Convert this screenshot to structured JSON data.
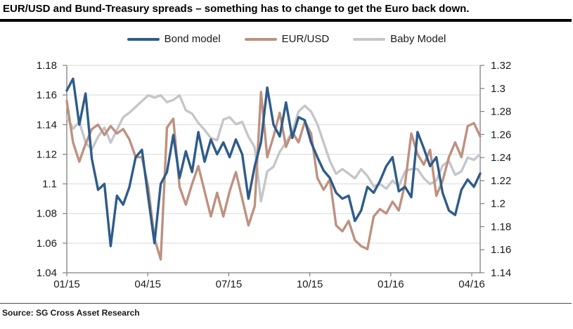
{
  "title": "EUR/USD and Bund-Treasury spreads – something has to change to get the Euro back down.",
  "source": "Source: SG Cross Asset Research",
  "colors": {
    "grid": "#D9D9D9",
    "axis": "#808080",
    "text": "#1a1a1a",
    "title_rule": "#000000"
  },
  "chart_data": {
    "type": "line",
    "frequency": "weekly",
    "legend_position": "top",
    "grid": "horizontal",
    "x_axis": {
      "labels": [
        "01/15",
        "04/15",
        "07/15",
        "10/15",
        "01/16",
        "04/16"
      ],
      "month_offsets": [
        0,
        3,
        6,
        9,
        12,
        15
      ]
    },
    "left_axis": {
      "min": 1.04,
      "max": 1.18,
      "step": 0.02,
      "ticks": [
        "1.18",
        "1.16",
        "1.14",
        "1.12",
        "1.1",
        "1.08",
        "1.06",
        "1.04"
      ]
    },
    "right_axis": {
      "min": 1.14,
      "max": 1.32,
      "step": 0.02,
      "ticks": [
        "1.32",
        "1.3",
        "1.28",
        "1.26",
        "1.24",
        "1.22",
        "1.2",
        "1.18",
        "1.16",
        "1.14"
      ]
    },
    "series": [
      {
        "name": "Bond model",
        "axis": "left",
        "color": "#2E5C8A",
        "values": [
          1.163,
          1.171,
          1.14,
          1.161,
          1.117,
          1.096,
          1.1,
          1.058,
          1.092,
          1.086,
          1.098,
          1.118,
          1.123,
          1.091,
          1.06,
          1.1,
          1.108,
          1.133,
          1.104,
          1.122,
          1.108,
          1.135,
          1.115,
          1.13,
          1.12,
          1.128,
          1.118,
          1.13,
          1.12,
          1.09,
          1.112,
          1.128,
          1.165,
          1.14,
          1.132,
          1.155,
          1.131,
          1.145,
          1.143,
          1.128,
          1.118,
          1.109,
          1.104,
          1.094,
          1.09,
          1.092,
          1.075,
          1.082,
          1.098,
          1.094,
          1.102,
          1.112,
          1.118,
          1.095,
          1.098,
          1.091,
          1.135,
          1.124,
          1.112,
          1.118,
          1.094,
          1.082,
          1.079,
          1.096,
          1.103,
          1.098,
          1.107
        ]
      },
      {
        "name": "EUR/USD",
        "axis": "left",
        "color": "#BE9180",
        "values": [
          1.156,
          1.128,
          1.115,
          1.127,
          1.137,
          1.14,
          1.133,
          1.139,
          1.134,
          1.137,
          1.13,
          1.118,
          1.118,
          1.098,
          1.063,
          1.049,
          1.138,
          1.144,
          1.098,
          1.086,
          1.1,
          1.112,
          1.095,
          1.078,
          1.094,
          1.078,
          1.095,
          1.108,
          1.09,
          1.072,
          1.085,
          1.162,
          1.118,
          1.132,
          1.148,
          1.125,
          1.135,
          1.128,
          1.142,
          1.134,
          1.104,
          1.096,
          1.103,
          1.072,
          1.068,
          1.075,
          1.062,
          1.058,
          1.056,
          1.078,
          1.083,
          1.08,
          1.088,
          1.082,
          1.1,
          1.134,
          1.12,
          1.113,
          1.123,
          1.092,
          1.102,
          1.118,
          1.128,
          1.118,
          1.139,
          1.141,
          1.132
        ]
      },
      {
        "name": "Baby Model",
        "axis": "right",
        "color": "#C4C6CA",
        "values": [
          1.275,
          1.265,
          1.271,
          1.253,
          1.247,
          1.258,
          1.266,
          1.253,
          1.264,
          1.275,
          1.279,
          1.284,
          1.289,
          1.294,
          1.292,
          1.294,
          1.288,
          1.29,
          1.294,
          1.281,
          1.278,
          1.27,
          1.264,
          1.257,
          1.255,
          1.273,
          1.275,
          1.269,
          1.271,
          1.258,
          1.249,
          1.202,
          1.228,
          1.232,
          1.245,
          1.253,
          1.262,
          1.28,
          1.285,
          1.28,
          1.269,
          1.253,
          1.237,
          1.226,
          1.23,
          1.226,
          1.222,
          1.23,
          1.224,
          1.215,
          1.217,
          1.213,
          1.22,
          1.215,
          1.228,
          1.23,
          1.23,
          1.222,
          1.217,
          1.22,
          1.233,
          1.237,
          1.225,
          1.228,
          1.24,
          1.238,
          1.243
        ]
      }
    ]
  }
}
